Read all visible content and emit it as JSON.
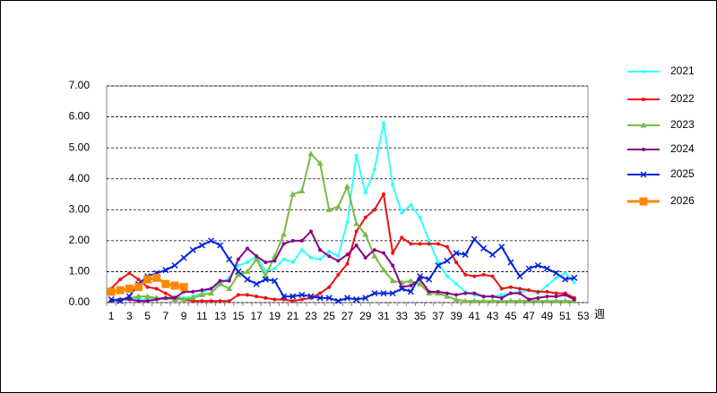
{
  "chart_data": {
    "type": "line",
    "x_label": "週",
    "categories": [
      "1",
      null,
      "3",
      null,
      "5",
      null,
      "7",
      null,
      "9",
      null,
      "11",
      null,
      "13",
      null,
      "15",
      null,
      "17",
      null,
      "19",
      null,
      "21",
      null,
      "23",
      null,
      "25",
      null,
      "27",
      null,
      "29",
      null,
      "31",
      null,
      "33",
      null,
      "35",
      null,
      "37",
      null,
      "39",
      null,
      "41",
      null,
      "43",
      null,
      "45",
      null,
      "47",
      null,
      "49",
      null,
      "51",
      null,
      "53"
    ],
    "ylim": [
      0,
      7
    ],
    "yticks": [
      {
        "value": 0,
        "label": "0.00"
      },
      {
        "value": 1,
        "label": "1.00"
      },
      {
        "value": 2,
        "label": "2.00"
      },
      {
        "value": 3,
        "label": "3.00"
      },
      {
        "value": 4,
        "label": "4.00"
      },
      {
        "value": 5,
        "label": "5.00"
      },
      {
        "value": 6,
        "label": "6.00"
      },
      {
        "value": 7,
        "label": "7.00"
      }
    ],
    "grid": true,
    "legend": "right",
    "series": [
      {
        "name": "2021",
        "color": "#33ffff",
        "marker": "circle",
        "line_width": 2,
        "values": [
          0.1,
          0.1,
          0.15,
          0.1,
          0.1,
          0.15,
          0.15,
          0.2,
          0.15,
          0.2,
          0.3,
          0.45,
          0.6,
          0.8,
          1.2,
          1.3,
          1.5,
          1.0,
          1.1,
          1.4,
          1.3,
          1.7,
          1.45,
          1.4,
          1.65,
          1.5,
          2.6,
          4.75,
          3.55,
          4.3,
          5.8,
          3.8,
          2.9,
          3.15,
          2.75,
          2.0,
          1.3,
          0.85,
          0.6,
          0.35,
          0.25,
          0.2,
          0.2,
          0.25,
          0.3,
          0.35,
          0.4,
          0.3,
          0.55,
          0.8,
          0.95,
          0.65,
          null
        ]
      },
      {
        "name": "2022",
        "color": "#ee1111",
        "marker": "circle",
        "line_width": 2,
        "values": [
          0.45,
          0.75,
          0.95,
          0.75,
          0.5,
          0.45,
          0.3,
          0.15,
          0.1,
          0.05,
          0.05,
          0.05,
          0.05,
          0.05,
          0.25,
          0.25,
          0.2,
          0.15,
          0.1,
          0.1,
          0.05,
          0.1,
          0.15,
          0.3,
          0.5,
          0.9,
          1.25,
          2.3,
          2.75,
          3.0,
          3.5,
          1.6,
          2.1,
          1.9,
          1.9,
          1.9,
          1.9,
          1.8,
          1.3,
          0.9,
          0.85,
          0.9,
          0.85,
          0.45,
          0.5,
          0.45,
          0.4,
          0.35,
          0.35,
          0.3,
          0.3,
          0.15,
          null
        ]
      },
      {
        "name": "2023",
        "color": "#77bb44",
        "marker": "triangle",
        "line_width": 2,
        "values": [
          0.05,
          0.1,
          0.15,
          0.2,
          0.2,
          0.15,
          0.15,
          0.1,
          0.1,
          0.15,
          0.25,
          0.3,
          0.6,
          0.45,
          0.9,
          1.0,
          1.4,
          0.85,
          1.5,
          2.2,
          3.5,
          3.6,
          4.8,
          4.5,
          3.0,
          3.1,
          3.75,
          2.55,
          2.2,
          1.5,
          1.05,
          0.7,
          0.65,
          0.7,
          0.6,
          0.3,
          0.3,
          0.2,
          0.1,
          0.05,
          0.05,
          0.05,
          0.05,
          0.05,
          0.05,
          0.05,
          0.05,
          0.05,
          0.05,
          0.05,
          0.05,
          0.05,
          null
        ]
      },
      {
        "name": "2024",
        "color": "#880088",
        "marker": "circle",
        "line_width": 2,
        "values": [
          0.05,
          0.1,
          0.1,
          0.05,
          0.05,
          0.1,
          0.15,
          0.15,
          0.35,
          0.35,
          0.4,
          0.45,
          0.7,
          0.7,
          1.4,
          1.75,
          1.5,
          1.3,
          1.35,
          1.9,
          2.0,
          2.0,
          2.3,
          1.7,
          1.5,
          1.35,
          1.55,
          1.85,
          1.45,
          1.7,
          1.6,
          1.2,
          0.5,
          0.55,
          0.75,
          0.35,
          0.35,
          0.3,
          0.25,
          0.3,
          0.3,
          0.2,
          0.2,
          0.15,
          0.3,
          0.3,
          0.1,
          0.15,
          0.2,
          0.2,
          0.25,
          0.1,
          null
        ]
      },
      {
        "name": "2025",
        "color": "#0022dd",
        "marker": "x",
        "line_width": 2,
        "values": [
          0.1,
          0.05,
          0.2,
          0.6,
          0.85,
          0.95,
          1.05,
          1.2,
          1.45,
          1.7,
          1.85,
          2.0,
          1.85,
          1.4,
          1.0,
          0.75,
          0.6,
          0.75,
          0.7,
          0.2,
          0.2,
          0.25,
          0.2,
          0.15,
          0.15,
          0.05,
          0.15,
          0.1,
          0.15,
          0.3,
          0.3,
          0.3,
          0.45,
          0.35,
          0.85,
          0.75,
          1.2,
          1.35,
          1.6,
          1.55,
          2.05,
          1.75,
          1.55,
          1.8,
          1.3,
          0.85,
          1.1,
          1.2,
          1.1,
          0.95,
          0.75,
          0.8,
          null
        ]
      },
      {
        "name": "2026",
        "color": "#ff8800",
        "marker": "square",
        "line_width": 3,
        "values": [
          0.35,
          0.4,
          0.45,
          0.5,
          0.75,
          0.8,
          0.6,
          0.55,
          0.5,
          null,
          null,
          null,
          null,
          null,
          null,
          null,
          null,
          null,
          null,
          null,
          null,
          null,
          null,
          null,
          null,
          null,
          null,
          null,
          null,
          null,
          null,
          null,
          null,
          null,
          null,
          null,
          null,
          null,
          null,
          null,
          null,
          null,
          null,
          null,
          null,
          null,
          null,
          null,
          null,
          null,
          null,
          null,
          null
        ]
      }
    ]
  }
}
